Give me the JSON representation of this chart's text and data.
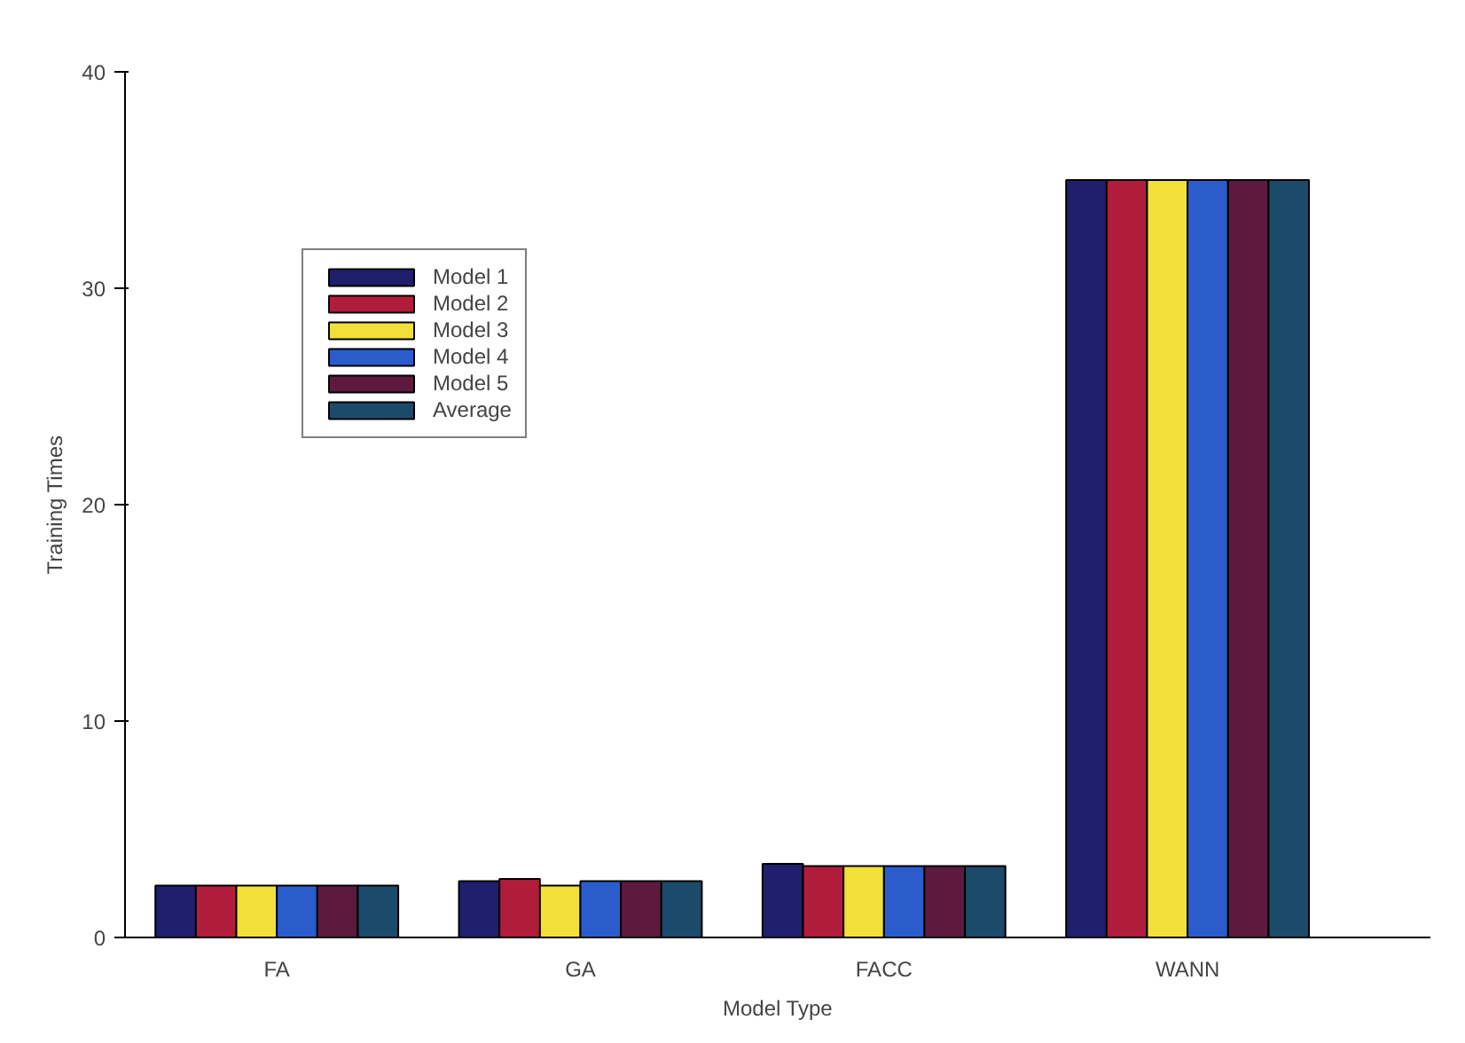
{
  "chart_data": {
    "type": "bar",
    "xlabel": "Model Type",
    "ylabel": "Training Times",
    "categories": [
      "FA",
      "GA",
      "FACC",
      "WANN"
    ],
    "series": [
      {
        "name": "Model 1",
        "color": "#1f1f6e",
        "values": [
          2.4,
          2.6,
          3.4,
          35
        ]
      },
      {
        "name": "Model 2",
        "color": "#b01c3c",
        "values": [
          2.4,
          2.7,
          3.3,
          35
        ]
      },
      {
        "name": "Model 3",
        "color": "#f2e03a",
        "values": [
          2.4,
          2.4,
          3.3,
          35
        ]
      },
      {
        "name": "Model 4",
        "color": "#2a5ccc",
        "values": [
          2.4,
          2.6,
          3.3,
          35
        ]
      },
      {
        "name": "Model 5",
        "color": "#5e1a3e",
        "values": [
          2.4,
          2.6,
          3.3,
          35
        ]
      },
      {
        "name": "Average",
        "color": "#1c4a6a",
        "values": [
          2.4,
          2.6,
          3.3,
          35
        ]
      }
    ],
    "ylim": [
      0,
      40
    ],
    "yticks": [
      0,
      10,
      20,
      30,
      40
    ],
    "grid": false,
    "legend": "top left"
  }
}
